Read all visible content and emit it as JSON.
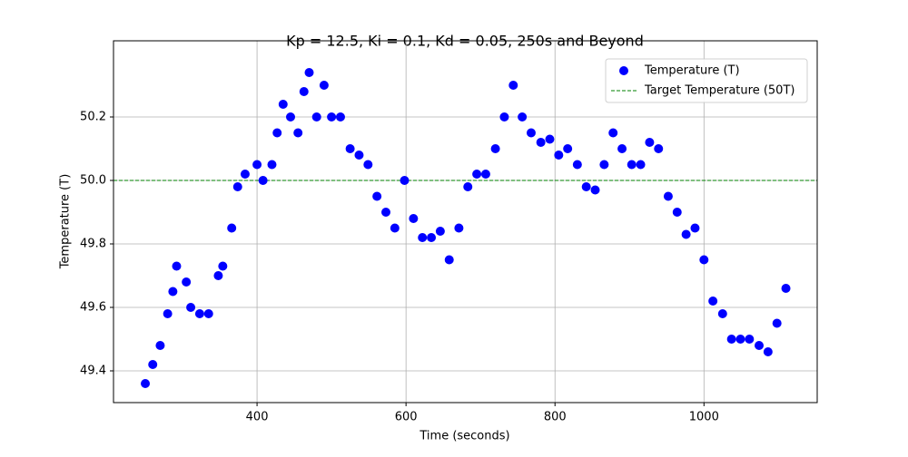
{
  "chart_data": {
    "type": "scatter",
    "title": "Kp = 12.5, Ki = 0.1, Kd = 0.05, 250s and Beyond",
    "xlabel": "Time (seconds)",
    "ylabel": "Temperature (T)",
    "x": [
      250,
      260,
      270,
      280,
      287,
      292,
      305,
      311,
      323,
      335,
      348,
      354,
      366,
      374,
      384,
      400,
      408,
      420,
      427,
      435,
      445,
      455,
      463,
      470,
      480,
      490,
      500,
      512,
      525,
      537,
      549,
      561,
      573,
      585,
      598,
      610,
      622,
      634,
      646,
      658,
      671,
      683,
      695,
      707,
      720,
      732,
      744,
      756,
      768,
      781,
      793,
      805,
      817,
      830,
      842,
      854,
      866,
      878,
      890,
      903,
      915,
      927,
      939,
      952,
      964,
      976,
      988,
      1000,
      1012,
      1025,
      1037,
      1049,
      1061,
      1074,
      1086,
      1098,
      1110
    ],
    "series": [
      {
        "name": "Temperature (T)",
        "color": "#0000ff",
        "values": [
          49.36,
          49.42,
          49.48,
          49.58,
          49.65,
          49.73,
          49.68,
          49.6,
          49.58,
          49.58,
          49.7,
          49.73,
          49.85,
          49.98,
          50.02,
          50.05,
          50.0,
          50.05,
          50.15,
          50.24,
          50.2,
          50.15,
          50.28,
          50.34,
          50.2,
          50.3,
          50.2,
          50.2,
          50.1,
          50.08,
          50.05,
          49.95,
          49.9,
          49.85,
          50.0,
          49.88,
          49.82,
          49.82,
          49.84,
          49.75,
          49.85,
          49.98,
          50.02,
          50.02,
          50.1,
          50.2,
          50.3,
          50.2,
          50.15,
          50.12,
          50.13,
          50.08,
          50.1,
          50.05,
          49.98,
          49.97,
          50.05,
          50.15,
          50.1,
          50.05,
          50.05,
          50.12,
          50.1,
          49.95,
          49.9,
          49.83,
          49.85,
          49.75,
          49.62,
          49.58,
          49.5,
          49.5,
          49.5,
          49.48,
          49.46,
          49.55,
          49.66
        ]
      }
    ],
    "target_line": {
      "name": "Target Temperature (50T)",
      "color": "#008000",
      "value": 50
    },
    "xlim": [
      207.3,
      1152
    ],
    "ylim": [
      49.3,
      50.44
    ],
    "xticks": [
      400,
      600,
      800,
      1000
    ],
    "yticks": [
      49.4,
      49.6,
      49.8,
      {
        "value": 50,
        "label": "50.0"
      },
      50.2
    ],
    "grid": true,
    "legend": "upper right"
  }
}
